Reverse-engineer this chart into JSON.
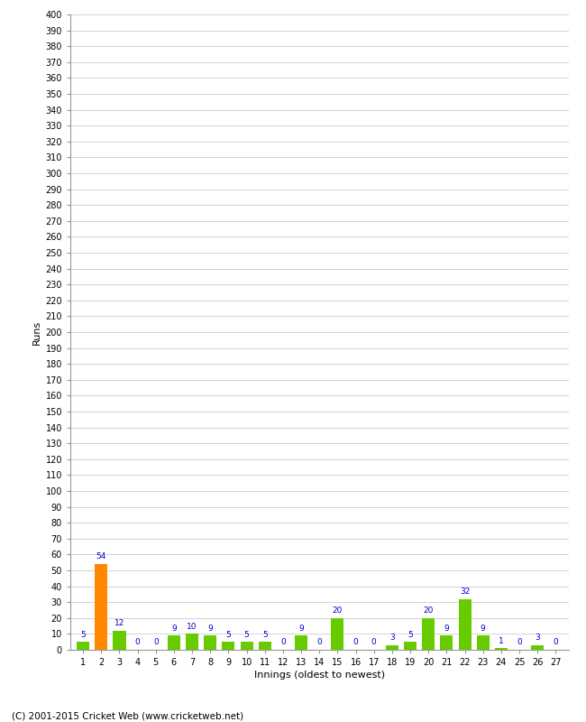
{
  "innings": [
    1,
    2,
    3,
    4,
    5,
    6,
    7,
    8,
    9,
    10,
    11,
    12,
    13,
    14,
    15,
    16,
    17,
    18,
    19,
    20,
    21,
    22,
    23,
    24,
    25,
    26,
    27
  ],
  "runs": [
    5,
    54,
    12,
    0,
    0,
    9,
    10,
    9,
    5,
    5,
    5,
    0,
    9,
    0,
    20,
    0,
    0,
    3,
    5,
    20,
    9,
    32,
    9,
    1,
    0,
    3,
    0
  ],
  "colors": [
    "#66cc00",
    "#ff8800",
    "#66cc00",
    "#66cc00",
    "#66cc00",
    "#66cc00",
    "#66cc00",
    "#66cc00",
    "#66cc00",
    "#66cc00",
    "#66cc00",
    "#66cc00",
    "#66cc00",
    "#66cc00",
    "#66cc00",
    "#66cc00",
    "#66cc00",
    "#66cc00",
    "#66cc00",
    "#66cc00",
    "#66cc00",
    "#66cc00",
    "#66cc00",
    "#66cc00",
    "#66cc00",
    "#66cc00",
    "#66cc00"
  ],
  "ylabel": "Runs",
  "xlabel": "Innings (oldest to newest)",
  "ylim": [
    0,
    400
  ],
  "yticks_step": 10,
  "label_color": "#0000cc",
  "background_color": "#ffffff",
  "grid_color": "#cccccc",
  "footer": "(C) 2001-2015 Cricket Web (www.cricketweb.net)"
}
